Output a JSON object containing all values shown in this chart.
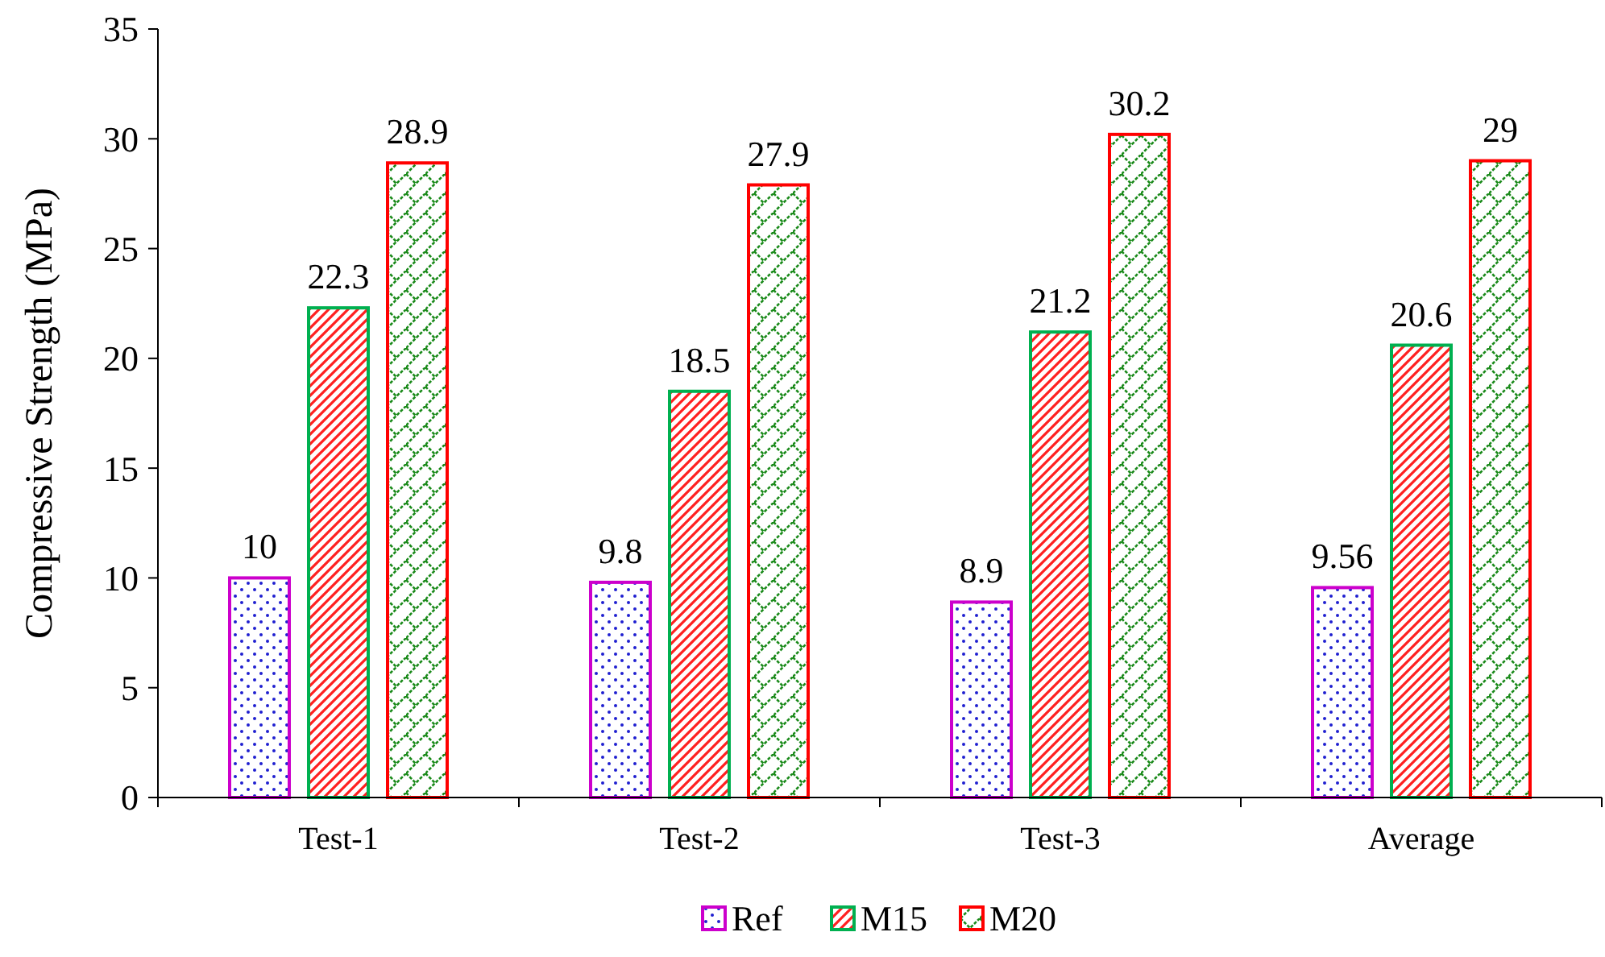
{
  "chart_data": {
    "type": "bar",
    "ylabel": "Compressive Strength (MPa)",
    "categories": [
      "Test-1",
      "Test-2",
      "Test-3",
      "Average"
    ],
    "series": [
      {
        "name": "Ref",
        "color": "#cc00cc",
        "values": [
          10,
          9.8,
          8.9,
          9.56
        ]
      },
      {
        "name": "M15",
        "color": "#00b050",
        "values": [
          22.3,
          18.5,
          21.2,
          20.6
        ]
      },
      {
        "name": "M20",
        "color": "#ff0000",
        "values": [
          28.9,
          27.9,
          30.2,
          29
        ]
      }
    ],
    "ylim": [
      0,
      35
    ],
    "yticks": [
      0,
      5,
      10,
      15,
      20,
      25,
      30,
      35
    ],
    "grid": false,
    "legend": "bottom",
    "data_labels": true
  }
}
